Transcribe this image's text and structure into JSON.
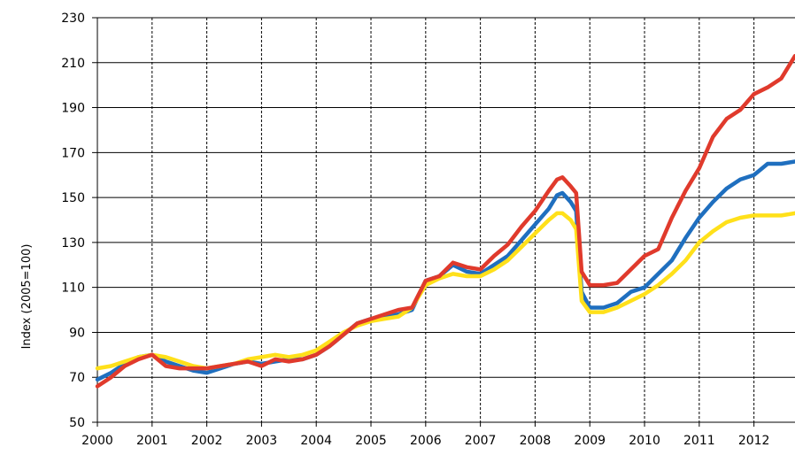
{
  "chart_data": {
    "type": "line",
    "title": "",
    "xlabel": "",
    "ylabel": "Index (2005=100)",
    "ylim": [
      50,
      230
    ],
    "yticks": [
      50,
      70,
      90,
      110,
      130,
      150,
      170,
      190,
      210,
      230
    ],
    "xlim": [
      2000,
      2012.75
    ],
    "xticks": [
      "2000",
      "2001",
      "2002",
      "2003",
      "2004",
      "2005",
      "2006",
      "2007",
      "2008",
      "2009",
      "2010",
      "2011",
      "2012"
    ],
    "grid": true,
    "legend": "none",
    "x": [
      2000.0,
      2000.25,
      2000.5,
      2000.75,
      2001.0,
      2001.25,
      2001.5,
      2001.75,
      2002.0,
      2002.25,
      2002.5,
      2002.75,
      2003.0,
      2003.25,
      2003.5,
      2003.75,
      2004.0,
      2004.25,
      2004.5,
      2004.75,
      2005.0,
      2005.25,
      2005.5,
      2005.75,
      2006.0,
      2006.25,
      2006.5,
      2006.75,
      2007.0,
      2007.25,
      2007.5,
      2007.75,
      2008.0,
      2008.25,
      2008.4,
      2008.5,
      2008.65,
      2008.75,
      2008.85,
      2009.0,
      2009.25,
      2009.5,
      2009.75,
      2010.0,
      2010.25,
      2010.5,
      2010.75,
      2011.0,
      2011.25,
      2011.5,
      2011.75,
      2012.0,
      2012.25,
      2012.5,
      2012.75
    ],
    "series": [
      {
        "color": "#1f6fbf",
        "values": [
          69,
          72,
          76,
          79,
          80,
          77,
          75,
          73,
          72,
          74,
          76,
          77,
          76,
          77,
          78,
          78,
          80,
          84,
          89,
          94,
          96,
          97,
          98,
          100,
          113,
          115,
          120,
          117,
          116,
          120,
          124,
          131,
          138,
          145,
          151,
          152,
          148,
          144,
          108,
          101,
          101,
          103,
          108,
          110,
          116,
          122,
          132,
          141,
          148,
          154,
          158,
          160,
          165,
          165,
          166
        ]
      },
      {
        "color": "#ffe01a",
        "values": [
          74,
          75,
          77,
          79,
          80,
          79,
          77,
          75,
          74,
          75,
          76,
          78,
          79,
          80,
          79,
          80,
          82,
          86,
          90,
          93,
          95,
          96,
          97,
          101,
          111,
          114,
          116,
          115,
          115,
          118,
          122,
          128,
          134,
          140,
          143,
          143,
          140,
          136,
          104,
          99,
          99,
          101,
          104,
          107,
          111,
          116,
          122,
          130,
          135,
          139,
          141,
          142,
          142,
          142,
          143
        ]
      },
      {
        "color": "#e03a2c",
        "values": [
          66,
          70,
          75,
          78,
          80,
          75,
          74,
          74,
          74,
          75,
          76,
          77,
          75,
          78,
          77,
          78,
          80,
          84,
          89,
          94,
          96,
          98,
          100,
          101,
          113,
          115,
          121,
          119,
          118,
          124,
          129,
          137,
          144,
          153,
          158,
          159,
          155,
          152,
          117,
          111,
          111,
          112,
          118,
          124,
          127,
          141,
          153,
          163,
          177,
          185,
          189,
          196,
          199,
          203,
          213
        ]
      }
    ]
  }
}
